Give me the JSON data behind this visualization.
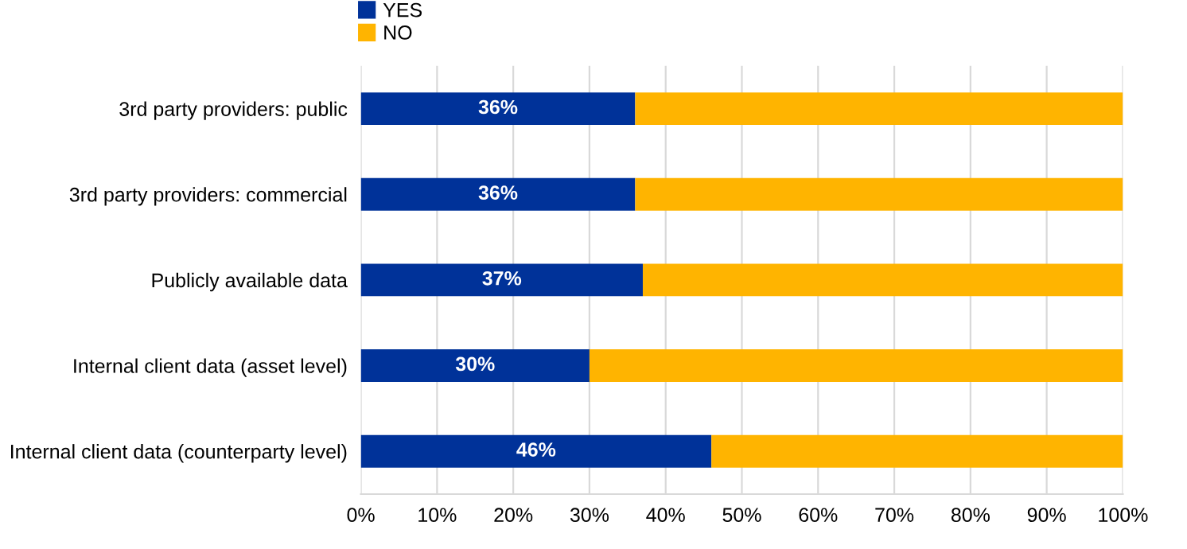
{
  "chart_data": {
    "type": "bar",
    "orientation": "horizontal",
    "stacked": true,
    "categories": [
      "3rd party providers: public",
      "3rd party providers: commercial",
      "Publicly available data",
      "Internal client data (asset level)",
      "Internal client data (counterparty level)"
    ],
    "series": [
      {
        "name": "YES",
        "color": "#003299",
        "values": [
          36,
          36,
          37,
          30,
          46
        ],
        "value_labels": [
          "36%",
          "36%",
          "37%",
          "30%",
          "46%"
        ]
      },
      {
        "name": "NO",
        "color": "#ffb400",
        "values": [
          64,
          64,
          63,
          70,
          54
        ]
      }
    ],
    "xlim": [
      0,
      100
    ],
    "xticks": [
      {
        "value": 0,
        "label": "0%"
      },
      {
        "value": 10,
        "label": "10%"
      },
      {
        "value": 20,
        "label": "20%"
      },
      {
        "value": 30,
        "label": "30%"
      },
      {
        "value": 40,
        "label": "40%"
      },
      {
        "value": 50,
        "label": "50%"
      },
      {
        "value": 60,
        "label": "60%"
      },
      {
        "value": 70,
        "label": "70%"
      },
      {
        "value": 80,
        "label": "80%"
      },
      {
        "value": 90,
        "label": "90%"
      },
      {
        "value": 100,
        "label": "100%"
      }
    ],
    "grid": "x",
    "legend": "top left"
  }
}
